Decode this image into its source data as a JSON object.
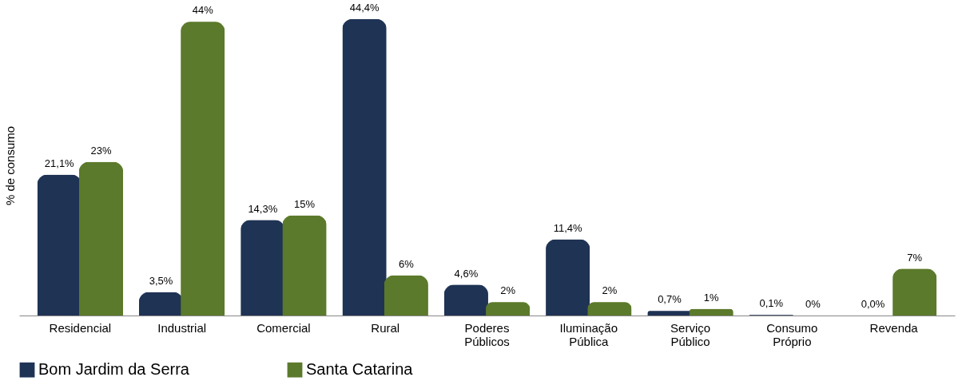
{
  "chart_data": {
    "type": "bar",
    "ylabel": "% de consumo",
    "categories": [
      "Residencial",
      "Industrial",
      "Comercial",
      "Rural",
      "Poderes Públicos",
      "Iluminação Pública",
      "Serviço Público",
      "Consumo Próprio",
      "Revenda"
    ],
    "series": [
      {
        "name": "Bom Jardim da Serra",
        "color": "#1f3354",
        "values": [
          21.1,
          3.5,
          14.3,
          44.4,
          4.6,
          11.4,
          0.7,
          0.1,
          0.0
        ],
        "value_labels": [
          "21,1%",
          "3,5%",
          "14,3%",
          "44,4%",
          "4,6%",
          "11,4%",
          "0,7%",
          "0,1%",
          "0,0%"
        ]
      },
      {
        "name": "Santa Catarina",
        "color": "#5b7a2b",
        "values": [
          23,
          44,
          15,
          6,
          2,
          2,
          1,
          0,
          7
        ],
        "value_labels": [
          "23%",
          "44%",
          "15%",
          "6%",
          "2%",
          "2%",
          "1%",
          "0%",
          "7%"
        ]
      }
    ],
    "legend": "bottom",
    "grid": false
  }
}
